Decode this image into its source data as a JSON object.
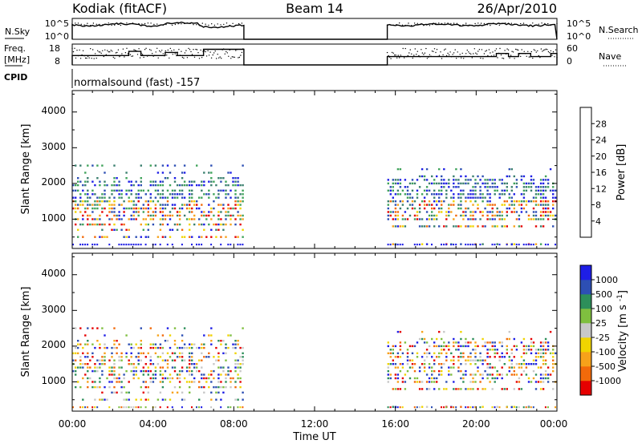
{
  "header": {
    "station": "Kodiak (fitACF)",
    "beam": "Beam 14",
    "date": "26/Apr/2010"
  },
  "strip_panels": {
    "nsky": {
      "left_label": "N.Sky",
      "right_label": "N.Search",
      "left_ticks": [
        "10^5",
        "10^0"
      ],
      "right_ticks": [
        "10^5",
        "10^0"
      ]
    },
    "freq": {
      "left_label_1": "Freq.",
      "left_label_2": "[MHz]",
      "right_label": "Nave",
      "left_ticks": [
        "18",
        "8"
      ],
      "right_ticks": [
        "60",
        "0"
      ]
    },
    "cpid": {
      "label": "CPID",
      "value": "normalsound (fast) -157"
    }
  },
  "colors": {
    "power_scale": [
      "#1e1ee6",
      "#2d4fb4",
      "#3a7f6e",
      "#3fa35a",
      "#f0d400",
      "#f7a21a",
      "#f26a0a",
      "#e60000"
    ],
    "velocity_scale": [
      "#e60000",
      "#f26a0a",
      "#f7a21a",
      "#f0d400",
      "#c8c8c8",
      "#7fbf3f",
      "#2d8f5a",
      "#2d4fb4",
      "#1e1ee6"
    ]
  },
  "chart_data": [
    {
      "type": "heatmap",
      "name": "power",
      "ylabel": "Slant Range [km]",
      "xlabel": "",
      "yticks": [
        "1000",
        "2000",
        "3000",
        "4000"
      ],
      "ylim": [
        180,
        4600
      ],
      "xlim_hours": [
        0,
        24
      ],
      "colorbar_label": "Power [dB]",
      "colorbar_ticks": [
        "4",
        "8",
        "12",
        "16",
        "20",
        "24",
        "28"
      ],
      "colorbar_range": [
        0,
        32
      ],
      "data_intervals_hours": [
        [
          0,
          8.5
        ],
        [
          15.6,
          24
        ]
      ]
    },
    {
      "type": "heatmap",
      "name": "velocity",
      "ylabel": "Slant Range [km]",
      "xlabel": "Time UT",
      "yticks": [
        "1000",
        "2000",
        "3000",
        "4000"
      ],
      "xticks": [
        "00:00",
        "04:00",
        "08:00",
        "12:00",
        "16:00",
        "20:00",
        "00:00"
      ],
      "ylim": [
        180,
        4600
      ],
      "xlim_hours": [
        0,
        24
      ],
      "colorbar_label": "Velocity [m s^-1]",
      "colorbar_ticks": [
        "1000",
        "500",
        "100",
        "25",
        "-25",
        "-100",
        "-500",
        "-1000"
      ],
      "data_intervals_hours": [
        [
          0,
          8.5
        ],
        [
          15.6,
          24
        ]
      ]
    }
  ]
}
